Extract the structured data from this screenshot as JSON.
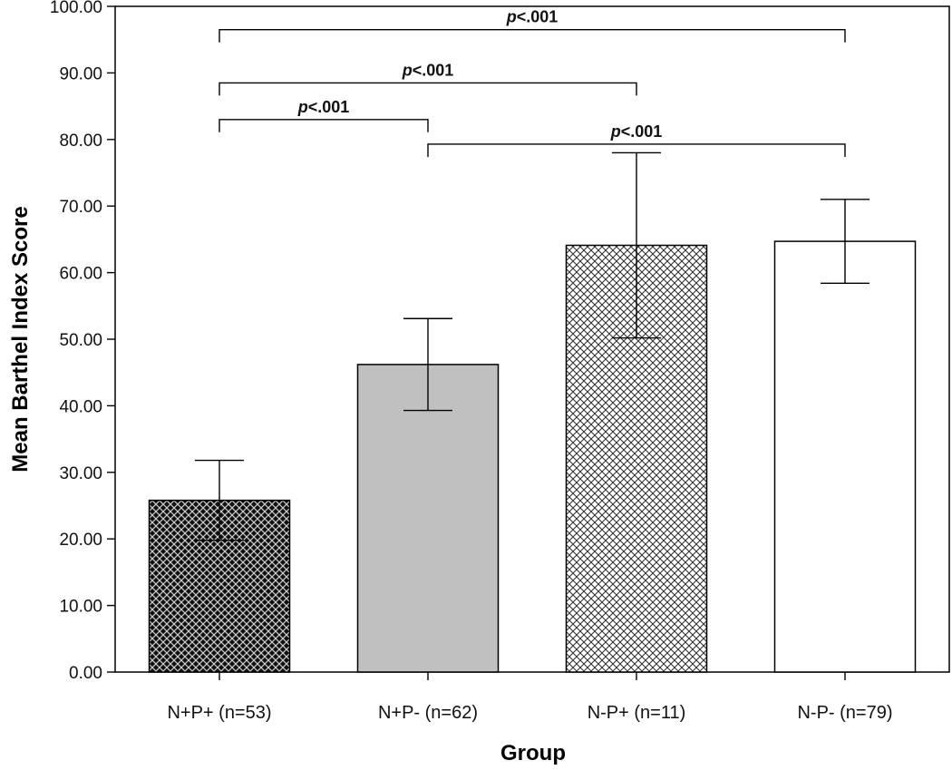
{
  "chart_data": {
    "type": "bar",
    "title": "",
    "xlabel": "Group",
    "ylabel": "Mean Barthel Index Score",
    "ylim": [
      0,
      100
    ],
    "yticks": [
      "0.00",
      "10.00",
      "20.00",
      "30.00",
      "40.00",
      "50.00",
      "60.00",
      "70.00",
      "80.00",
      "90.00",
      "100.00"
    ],
    "categories": [
      "N+P+ (n=53)",
      "N+P- (n=62)",
      "N-P+ (n=11)",
      "N-P- (n=79)"
    ],
    "values": [
      25.8,
      46.2,
      64.1,
      64.7
    ],
    "error_bars": [
      {
        "low": 19.8,
        "high": 31.8
      },
      {
        "low": 39.3,
        "high": 53.1
      },
      {
        "low": 50.2,
        "high": 78.0
      },
      {
        "low": 58.4,
        "high": 71.0
      }
    ],
    "fills": [
      "dark-crosshatch",
      "solid-gray",
      "light-crosshatch",
      "white"
    ],
    "colors": {
      "gray_fill": "#c0c0c0",
      "dark_fill": "#111111",
      "axis": "#000000"
    },
    "grid": false,
    "significance": [
      {
        "from": 0,
        "to": 3,
        "label": "p<.001",
        "y": 96.5
      },
      {
        "from": 0,
        "to": 2,
        "label": "p<.001",
        "y": 88.5
      },
      {
        "from": 0,
        "to": 1,
        "label": "p<.001",
        "y": 83.0
      },
      {
        "from": 1,
        "to": 3,
        "label": "p<.001",
        "y": 79.3
      }
    ]
  }
}
